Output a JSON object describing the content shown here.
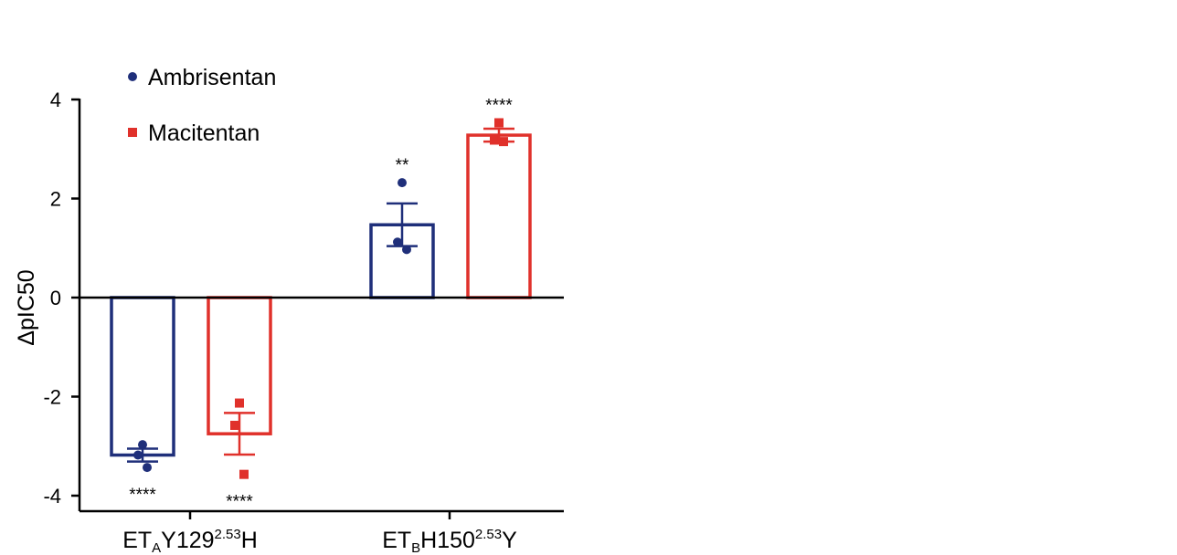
{
  "chart_data": {
    "type": "bar",
    "ylabel": "ΔpIC50",
    "ylim": [
      -4.3,
      4.0
    ],
    "yticks": [
      4,
      2,
      0,
      -2,
      -4
    ],
    "yticklabels": [
      "4",
      "2",
      "0",
      "-2",
      "-4"
    ],
    "grid": false,
    "legend_position": "top-left",
    "categories": [
      {
        "main": "ET",
        "sub": "A",
        "mid": "Y129",
        "sup": "2.53",
        "end": "H"
      },
      {
        "main": "ET",
        "sub": "B",
        "mid": "H150",
        "sup": "2.53",
        "end": "Y"
      }
    ],
    "series": [
      {
        "name": "Ambrisentan",
        "color": "#1f2f7a",
        "marker": "circle",
        "values": [
          -3.18,
          1.47
        ],
        "errors": [
          0.13,
          0.43
        ],
        "points": [
          [
            -2.97,
            -3.18,
            -3.43
          ],
          [
            2.32,
            1.12,
            0.97
          ]
        ],
        "significance": [
          "****",
          "**"
        ]
      },
      {
        "name": "Macitentan",
        "color": "#e0312b",
        "marker": "square",
        "values": [
          -2.75,
          3.28
        ],
        "errors": [
          0.42,
          0.13
        ],
        "points": [
          [
            -2.13,
            -2.58,
            -3.57
          ],
          [
            3.53,
            3.18,
            3.15
          ]
        ],
        "significance": [
          "****",
          "****"
        ]
      }
    ]
  }
}
